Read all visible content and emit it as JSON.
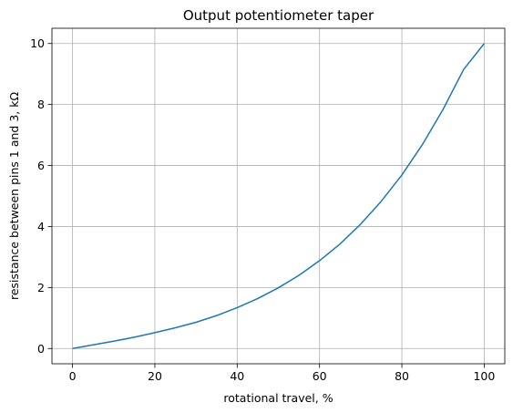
{
  "chart_data": {
    "type": "line",
    "title": "Output potentiometer taper",
    "xlabel": "rotational travel, %",
    "ylabel": "resistance between pins 1 and 3, kΩ",
    "xlim": [
      -5,
      105
    ],
    "ylim": [
      -0.5,
      10.5
    ],
    "xticks": [
      0,
      20,
      40,
      60,
      80,
      100
    ],
    "yticks": [
      0,
      2,
      4,
      6,
      8,
      10
    ],
    "grid": true,
    "series": [
      {
        "color": "#1f77b4",
        "x": [
          0,
          5,
          10,
          15,
          20,
          25,
          30,
          35,
          40,
          45,
          50,
          55,
          60,
          65,
          70,
          75,
          80,
          85,
          90,
          95,
          100
        ],
        "y": [
          0,
          0.12,
          0.24,
          0.37,
          0.52,
          0.68,
          0.86,
          1.08,
          1.34,
          1.64,
          1.99,
          2.4,
          2.88,
          3.43,
          4.08,
          4.83,
          5.69,
          6.69,
          7.84,
          9.15,
          10.0
        ]
      }
    ]
  }
}
